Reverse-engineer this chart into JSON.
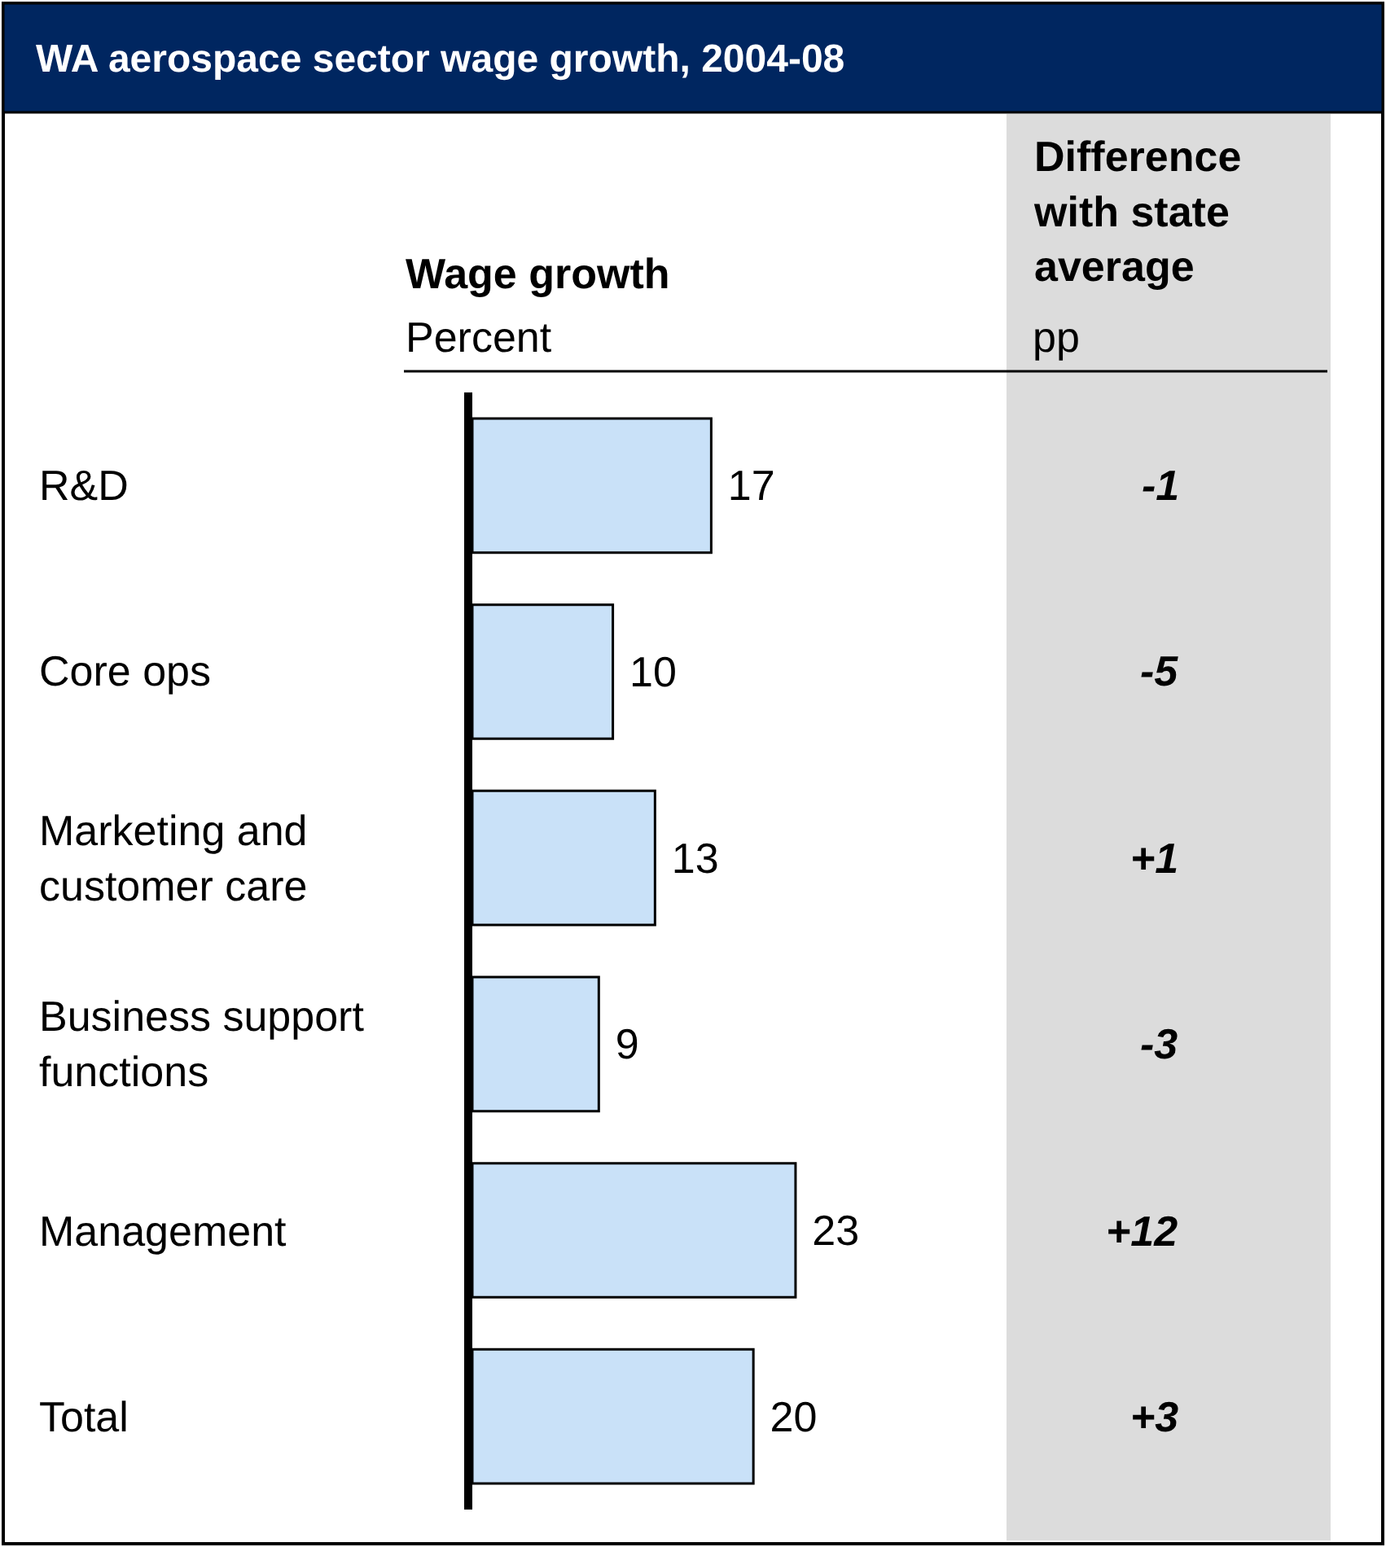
{
  "chart_data": {
    "type": "bar",
    "orientation": "horizontal",
    "title": "WA aerospace sector wage growth, 2004-08",
    "subtitle": "Wage growth",
    "xlabel": "Percent",
    "categories": [
      "R&D",
      "Core ops",
      "Marketing and customer care",
      "Business support functions",
      "Management",
      "Total"
    ],
    "values": [
      17,
      10,
      13,
      9,
      23,
      20
    ],
    "color": "#c9e1f8",
    "data_labels": true,
    "annotations": [
      "Difference with state average",
      "pp",
      "-1",
      "-5",
      "+1",
      "-3",
      "+12",
      "+3"
    ]
  }
}
